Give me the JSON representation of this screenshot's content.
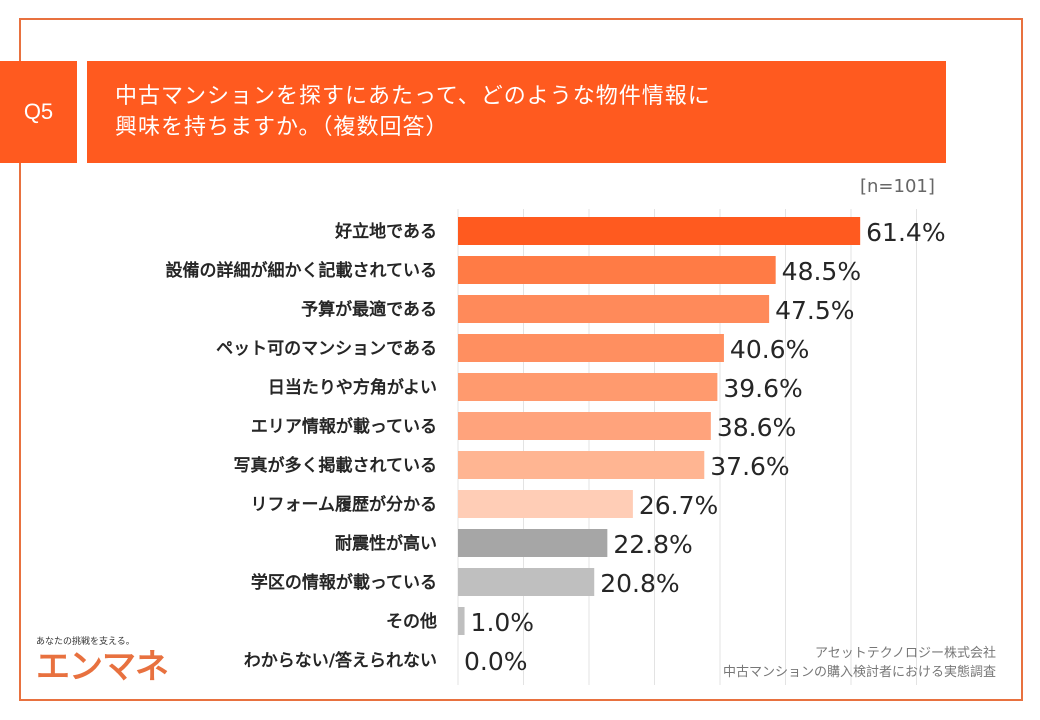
{
  "header": {
    "q": "Q5",
    "title_line1": "中古マンションを探すにあたって、どのような物件情報に",
    "title_line2": "興味を持ちますか。（複数回答）",
    "n": "[n=101]"
  },
  "footer": {
    "source1": "アセットテクノロジー株式会社",
    "source2": "中古マンションの購入検討者における実態調査",
    "logo_tagline": "あなたの挑戦を支える。",
    "logo_name": "エンマネ"
  },
  "chart_data": {
    "type": "bar",
    "orientation": "horizontal",
    "grid": true,
    "xlim": [
      0,
      70
    ],
    "categories": [
      "好立地である",
      "設備の詳細が細かく記載されている",
      "予算が最適である",
      "ペット可のマンションである",
      "日当たりや方角がよい",
      "エリア情報が載っている",
      "写真が多く掲載されている",
      "リフォーム履歴が分かる",
      "耐震性が高い",
      "学区の情報が載っている",
      "その他",
      "わからない/答えられない"
    ],
    "values": [
      61.4,
      48.5,
      47.5,
      40.6,
      39.6,
      38.6,
      37.6,
      26.7,
      22.8,
      20.8,
      1.0,
      0.0
    ],
    "labels": [
      "61.4%",
      "48.5%",
      "47.5%",
      "40.6%",
      "39.6%",
      "38.6%",
      "37.6%",
      "26.7%",
      "22.8%",
      "20.8%",
      "1.0%",
      "0.0%"
    ],
    "colors": [
      "#FF5A1F",
      "#FF7B45",
      "#FF8A5A",
      "#FF8F60",
      "#FF9A6E",
      "#FFA37C",
      "#FFB592",
      "#FFCDB6",
      "#A6A6A6",
      "#BFBFBF",
      "#BFBFBF",
      "#BFBFBF"
    ]
  }
}
